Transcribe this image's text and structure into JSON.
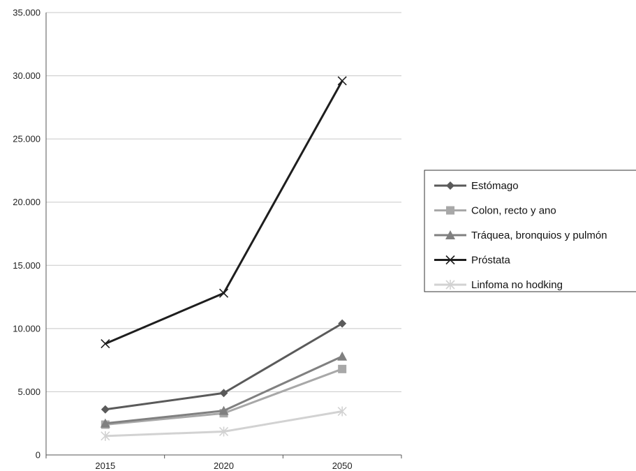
{
  "chart_data": {
    "type": "line",
    "categories": [
      "2015",
      "2020",
      "2050"
    ],
    "ylim": [
      0,
      35000
    ],
    "yticks": [
      0,
      5000,
      10000,
      15000,
      20000,
      25000,
      30000,
      35000
    ],
    "ytick_labels": [
      "0",
      "5.000",
      "10.000",
      "15.000",
      "20.000",
      "25.000",
      "30.000",
      "35.000"
    ],
    "grid": true,
    "legend_position": "right",
    "series": [
      {
        "name": "Estómago",
        "values": [
          3600,
          4900,
          10400
        ],
        "color": "#5a5a5a",
        "marker": "diamond"
      },
      {
        "name": "Colon, recto y ano",
        "values": [
          2400,
          3300,
          6800
        ],
        "color": "#a8a8a8",
        "marker": "square"
      },
      {
        "name": "Tráquea, bronquios y pulmón",
        "values": [
          2500,
          3500,
          7800
        ],
        "color": "#808080",
        "marker": "triangle"
      },
      {
        "name": "Próstata",
        "values": [
          8800,
          12800,
          29600
        ],
        "color": "#1e1e1e",
        "marker": "x"
      },
      {
        "name": "Linfoma no hodking",
        "values": [
          1500,
          1850,
          3450
        ],
        "color": "#d2d2d2",
        "marker": "star"
      }
    ]
  }
}
